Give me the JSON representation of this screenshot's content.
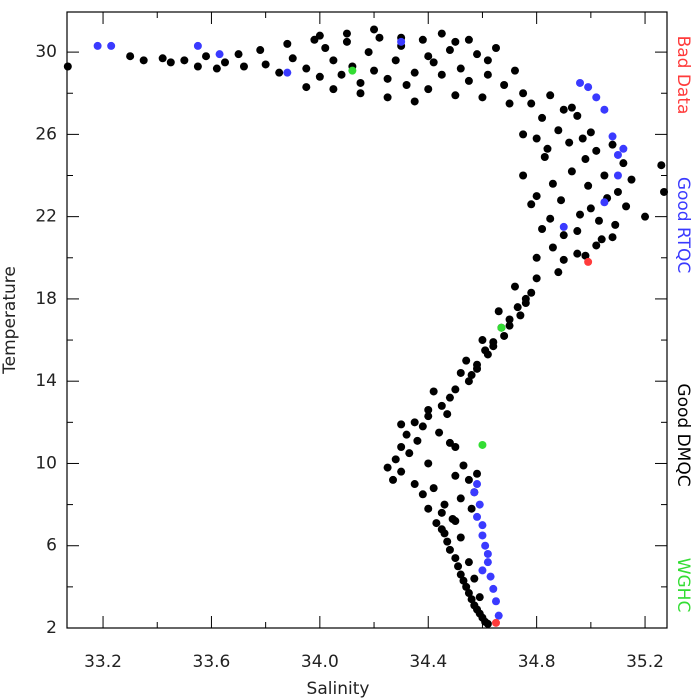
{
  "chart_data": {
    "type": "scatter",
    "x_label": "Salinity",
    "y_label": "Temperature",
    "xlim": [
      33.067,
      35.281
    ],
    "ylim": [
      2,
      31.95
    ],
    "xticks": [
      33.2,
      33.6,
      {
        "value": 34,
        "label": "34.0"
      },
      34.4,
      34.8,
      35.2
    ],
    "xminor": [
      33.4,
      33.8,
      34.2,
      34.6,
      35
    ],
    "yticks": [
      2,
      6,
      10,
      14,
      18,
      22,
      26,
      30
    ],
    "yminor": [
      4,
      8,
      12,
      16,
      20,
      24,
      28
    ],
    "series": [
      {
        "name": "Bad Data",
        "color": "#ff3b3b",
        "x": [
          34.65,
          34.99
        ],
        "values": [
          2.25,
          19.8
        ]
      },
      {
        "name": "Good RTQC",
        "color": "#3a3aff",
        "x": [
          33.18,
          33.23,
          33.55,
          33.63,
          33.88,
          34.58,
          34.59,
          34.6,
          34.61,
          34.62,
          34.63,
          34.64,
          34.65,
          34.66,
          34.57,
          34.58,
          34.6,
          34.62,
          34.6,
          34.96,
          34.99,
          35.02,
          35.05,
          35.08,
          35.1,
          35.12,
          35.1,
          35.05,
          34.9,
          34.3
        ],
        "values": [
          30.3,
          30.3,
          30.3,
          29.9,
          29.0,
          9.0,
          8.0,
          7.0,
          6.0,
          5.2,
          4.5,
          3.9,
          3.3,
          2.6,
          8.6,
          7.4,
          6.5,
          5.6,
          4.8,
          28.5,
          28.3,
          27.8,
          27.2,
          25.9,
          25.0,
          25.3,
          24.0,
          22.7,
          21.5,
          30.5
        ]
      },
      {
        "name": "Good DMQC",
        "color": "#000000",
        "x": [
          33.07,
          33.3,
          33.35,
          33.42,
          33.45,
          33.5,
          33.55,
          33.58,
          33.62,
          33.65,
          33.7,
          33.72,
          33.78,
          33.8,
          33.85,
          33.88,
          33.9,
          33.95,
          33.98,
          34.0,
          34.02,
          34.05,
          34.08,
          34.1,
          34.12,
          34.15,
          34.18,
          34.2,
          34.22,
          34.25,
          34.28,
          34.3,
          34.32,
          34.35,
          34.38,
          34.4,
          34.42,
          34.45,
          34.48,
          34.5,
          34.52,
          34.55,
          34.58,
          34.6,
          34.62,
          34.65,
          34.68,
          34.7,
          34.72,
          34.75,
          34.0,
          34.1,
          34.2,
          34.3,
          34.45,
          34.55,
          34.25,
          34.35,
          34.15,
          34.05,
          33.95,
          34.62,
          34.5,
          34.4,
          34.78,
          34.82,
          34.85,
          34.88,
          34.9,
          34.92,
          34.95,
          34.98,
          35.0,
          35.02,
          35.05,
          35.08,
          35.1,
          35.12,
          35.15,
          35.2,
          35.26,
          35.27,
          34.8,
          34.83,
          34.86,
          34.89,
          34.93,
          34.96,
          34.99,
          35.03,
          35.06,
          35.09,
          34.75,
          34.78,
          34.82,
          34.86,
          34.9,
          34.95,
          35.0,
          35.04,
          35.08,
          35.13,
          34.8,
          34.85,
          34.9,
          34.95,
          34.98,
          35.02,
          34.75,
          34.8,
          34.84,
          34.88,
          34.93,
          34.97,
          34.8,
          34.78,
          34.76,
          34.74,
          34.72,
          34.7,
          34.68,
          34.66,
          34.64,
          34.62,
          34.6,
          34.58,
          34.56,
          34.54,
          34.76,
          34.73,
          34.7,
          34.67,
          34.64,
          34.61,
          34.58,
          34.55,
          34.52,
          34.5,
          34.48,
          34.45,
          34.42,
          34.4,
          34.38,
          34.35,
          34.32,
          34.3,
          34.28,
          34.25,
          34.27,
          34.3,
          34.33,
          34.36,
          34.4,
          34.44,
          34.47,
          34.5,
          34.53,
          34.55,
          34.57,
          34.52,
          34.5,
          34.46,
          34.42,
          34.38,
          34.45,
          34.5,
          34.56,
          34.58,
          34.35,
          34.3,
          34.4,
          34.48,
          34.45,
          34.47,
          34.48,
          34.5,
          34.51,
          34.52,
          34.53,
          34.54,
          34.55,
          34.56,
          34.57,
          34.58,
          34.59,
          34.6,
          34.61,
          34.62,
          34.49,
          34.52,
          34.55,
          34.57,
          34.59,
          34.4,
          34.43,
          34.46
        ],
        "values": [
          29.3,
          29.8,
          29.6,
          29.7,
          29.5,
          29.6,
          29.3,
          29.8,
          29.2,
          29.5,
          29.9,
          29.3,
          30.1,
          29.4,
          29.0,
          30.4,
          29.7,
          29.2,
          30.6,
          28.8,
          30.2,
          29.6,
          28.9,
          30.5,
          29.3,
          28.5,
          30.0,
          29.1,
          30.7,
          28.7,
          29.6,
          30.3,
          28.4,
          29.0,
          30.6,
          28.2,
          29.5,
          28.9,
          30.1,
          27.9,
          29.2,
          28.6,
          29.9,
          27.8,
          28.9,
          30.2,
          28.4,
          27.5,
          29.1,
          28.0,
          30.8,
          30.9,
          31.1,
          30.7,
          30.9,
          30.6,
          27.8,
          27.6,
          28.0,
          28.2,
          28.3,
          29.6,
          30.5,
          29.8,
          27.5,
          26.8,
          27.9,
          26.2,
          27.2,
          25.6,
          26.9,
          24.8,
          26.1,
          25.2,
          24.0,
          25.5,
          23.2,
          24.6,
          23.8,
          22.0,
          24.5,
          23.2,
          25.8,
          24.9,
          23.6,
          22.8,
          24.2,
          22.1,
          23.5,
          21.8,
          22.9,
          21.6,
          24.0,
          22.6,
          21.4,
          20.5,
          21.1,
          20.2,
          22.4,
          20.9,
          21.0,
          22.5,
          23.0,
          21.9,
          19.9,
          21.3,
          20.1,
          20.6,
          26.0,
          20.0,
          25.3,
          19.3,
          27.3,
          25.8,
          19.0,
          18.3,
          17.8,
          17.2,
          18.6,
          16.7,
          16.2,
          17.4,
          15.7,
          15.3,
          16.0,
          14.8,
          14.3,
          15.0,
          18.0,
          17.6,
          17.0,
          16.6,
          15.9,
          15.5,
          14.6,
          14.0,
          14.4,
          13.6,
          13.2,
          12.8,
          13.5,
          12.3,
          11.8,
          12.0,
          11.4,
          10.8,
          10.2,
          9.8,
          9.2,
          9.6,
          10.5,
          11.1,
          10.0,
          11.5,
          12.4,
          10.8,
          9.9,
          9.2,
          8.6,
          8.3,
          9.4,
          8.0,
          8.8,
          8.5,
          7.6,
          7.2,
          7.8,
          9.5,
          9.0,
          11.9,
          12.6,
          11.0,
          6.8,
          6.2,
          5.8,
          5.4,
          5.0,
          4.6,
          4.3,
          4.0,
          3.7,
          3.4,
          3.1,
          2.9,
          2.7,
          2.5,
          2.3,
          2.2,
          7.3,
          6.4,
          5.2,
          4.4,
          3.5,
          7.8,
          7.1,
          6.6
        ]
      },
      {
        "name": "WGHC",
        "color": "#33dd33",
        "x": [
          34.67,
          34.6,
          34.12
        ],
        "values": [
          16.6,
          10.9,
          29.1
        ]
      }
    ]
  }
}
